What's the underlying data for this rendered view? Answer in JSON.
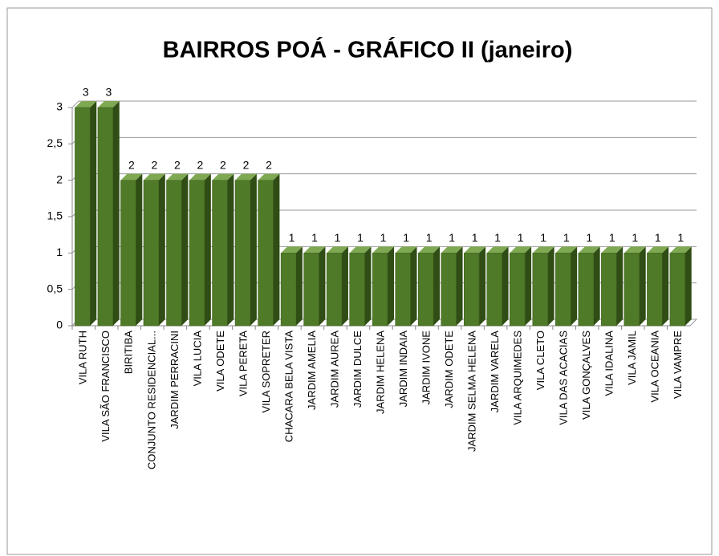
{
  "chart_data": {
    "type": "bar3d",
    "title": "BAIRROS POÁ - GRÁFICO II (janeiro)",
    "categories": [
      "VILA RUTH",
      "VILA SÃO FRANCISCO",
      "BIRITIBA",
      "CONJUNTO RESIDENCIAL...",
      "JARDIM PERRACINI",
      "VILA LUCIA",
      "VILA ODETE",
      "VILA PERETA",
      "VILA SOPRETER",
      "CHACARA BELA VISTA",
      "JARDIM AMELIA",
      "JARDIM AUREA",
      "JARDIM DULCE",
      "JARDIM HELENA",
      "JARDIM INDAIA",
      "JARDIM IVONE",
      "JARDIM ODETE",
      "JARDIM SELMA HELENA",
      "JARDIM VARELA",
      "VILA ARQUIMEDES",
      "VILA CLETO",
      "VILA DAS ACACIAS",
      "VILA GONÇALVES",
      "VILA IDALINA",
      "VILA JAMIL",
      "VILA OCEANIA",
      "VILA VAMPRE"
    ],
    "values": [
      3,
      3,
      2,
      2,
      2,
      2,
      2,
      2,
      2,
      1,
      1,
      1,
      1,
      1,
      1,
      1,
      1,
      1,
      1,
      1,
      1,
      1,
      1,
      1,
      1,
      1,
      1
    ],
    "color": "#4f7a28",
    "ylim": [
      0,
      3
    ],
    "yticks": [
      0,
      {
        "value": 0.5,
        "label": "0,5"
      },
      1,
      {
        "value": 1.5,
        "label": "1,5"
      },
      2,
      {
        "value": 2.5,
        "label": "2,5"
      },
      3
    ],
    "grid": true
  }
}
